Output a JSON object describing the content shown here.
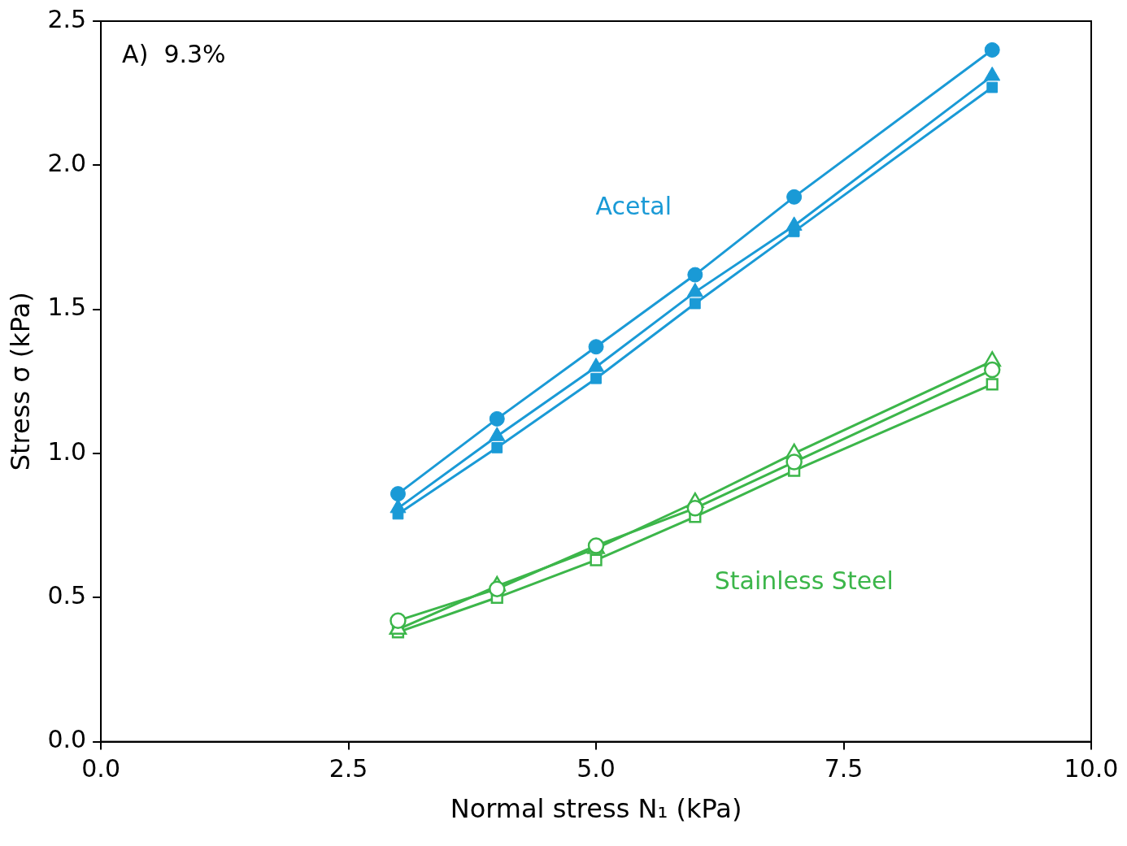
{
  "chart_data": {
    "type": "line",
    "title": "A)  9.3%",
    "x_label": "Normal stress N₁ (kPa)",
    "y_label": "Stress σ (kPa)",
    "annotations": [
      "Acetal",
      "Stainless Steel"
    ],
    "x": [
      3,
      4,
      5,
      6,
      7,
      9
    ],
    "series": [
      {
        "color": "#1a9ad6",
        "marker": "circle",
        "line_style": "solid",
        "values": [
          0.86,
          1.12,
          1.37,
          1.62,
          1.89,
          2.4
        ]
      },
      {
        "color": "#1a9ad6",
        "marker": "triangle",
        "line_style": "solid",
        "values": [
          0.81,
          1.06,
          1.3,
          1.56,
          1.79,
          2.31
        ]
      },
      {
        "color": "#1a9ad6",
        "marker": "square",
        "line_style": "solid",
        "values": [
          0.79,
          1.02,
          1.26,
          1.52,
          1.77,
          2.27
        ]
      },
      {
        "color": "#3cb64a",
        "marker": "open-circle",
        "line_style": "solid",
        "values": [
          0.42,
          0.53,
          0.68,
          0.81,
          0.97,
          1.29
        ]
      },
      {
        "color": "#3cb64a",
        "marker": "open-triangle",
        "line_style": "solid",
        "values": [
          0.39,
          0.54,
          0.67,
          0.83,
          1.0,
          1.32
        ]
      },
      {
        "color": "#3cb64a",
        "marker": "open-square",
        "line_style": "solid",
        "values": [
          0.38,
          0.5,
          0.63,
          0.78,
          0.94,
          1.24
        ]
      }
    ],
    "xlim": [
      0,
      10
    ],
    "xticks": [
      {
        "value": 0,
        "label": "0.0"
      },
      2.5,
      {
        "value": 5,
        "label": "5.0"
      },
      7.5,
      {
        "value": 10,
        "label": "10.0"
      }
    ],
    "ylim": [
      0,
      2.5
    ],
    "yticks": [
      {
        "value": 0,
        "label": "0.0"
      },
      0.5,
      {
        "value": 1,
        "label": "1.0"
      },
      1.5,
      {
        "value": 2,
        "label": "2.0"
      },
      2.5
    ],
    "grid": false
  }
}
